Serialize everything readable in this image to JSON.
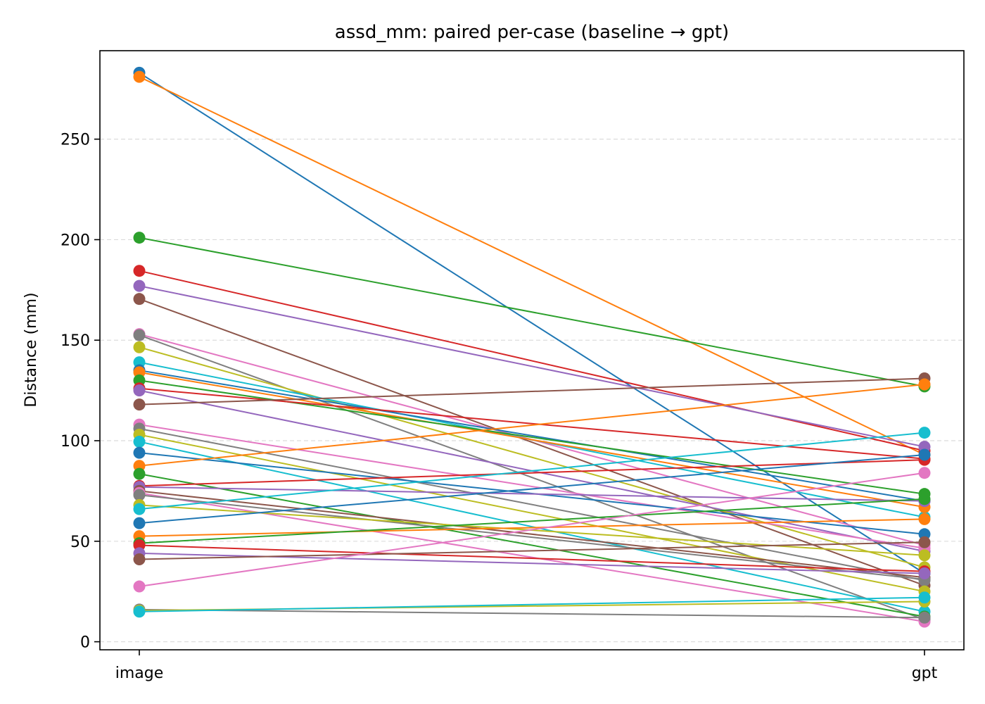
{
  "chart_data": {
    "type": "line",
    "title": "assd_mm: paired per-case (baseline → gpt)",
    "xlabel": "",
    "ylabel": "Distance (mm)",
    "categories": [
      "image",
      "gpt"
    ],
    "ylim": [
      -4,
      294
    ],
    "yticks": [
      0,
      50,
      100,
      150,
      200,
      250
    ],
    "grid": "horizontal dashed",
    "palette": [
      "#1f77b4",
      "#ff7f0e",
      "#2ca02c",
      "#d62728",
      "#9467bd",
      "#8c564b",
      "#e377c2",
      "#7f7f7f",
      "#bcbd22",
      "#17becf"
    ],
    "pairs": [
      [
        283,
        34
      ],
      [
        281,
        93
      ],
      [
        201,
        127
      ],
      [
        184.5,
        95
      ],
      [
        177,
        97
      ],
      [
        170.5,
        28
      ],
      [
        153,
        48
      ],
      [
        152.5,
        11
      ],
      [
        146.5,
        37
      ],
      [
        139,
        62
      ],
      [
        135,
        70
      ],
      [
        134,
        67
      ],
      [
        130,
        73.5
      ],
      [
        126,
        91
      ],
      [
        125,
        45
      ],
      [
        118,
        131
      ],
      [
        108,
        46.5
      ],
      [
        106,
        30.5
      ],
      [
        103,
        25
      ],
      [
        99.5,
        15
      ],
      [
        94,
        53.5
      ],
      [
        87.5,
        128
      ],
      [
        83.5,
        12.5
      ],
      [
        77.5,
        90.5
      ],
      [
        77,
        70
      ],
      [
        75,
        32
      ],
      [
        74,
        10
      ],
      [
        73,
        31
      ],
      [
        68,
        43
      ],
      [
        66,
        104
      ],
      [
        59,
        93
      ],
      [
        52.5,
        61
      ],
      [
        49,
        71
      ],
      [
        48,
        35
      ],
      [
        44,
        34
      ],
      [
        41,
        49.5
      ],
      [
        27.5,
        84
      ],
      [
        16,
        12
      ],
      [
        15.5,
        20
      ],
      [
        15,
        22
      ]
    ]
  }
}
